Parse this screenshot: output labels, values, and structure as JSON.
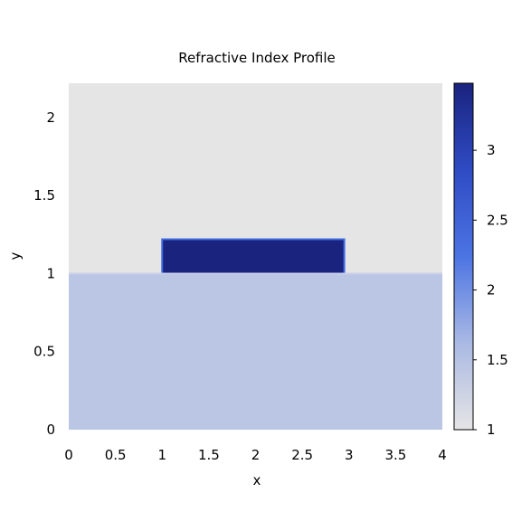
{
  "chart_data": {
    "type": "heatmap",
    "title": "Refractive Index Profile",
    "xlabel": "x",
    "ylabel": "y",
    "xlim": [
      0,
      4
    ],
    "ylim": [
      0,
      2.22
    ],
    "x_ticks": [
      0,
      0.5,
      1,
      1.5,
      2,
      2.5,
      3,
      3.5,
      4
    ],
    "y_ticks": [
      0,
      0.5,
      1,
      1.5,
      2
    ],
    "x_tick_labels": [
      "0",
      "0.5",
      "1",
      "1.5",
      "2",
      "2.5",
      "3",
      "3.5",
      "4"
    ],
    "y_tick_labels": [
      "0",
      "0.5",
      "1",
      "1.5",
      "2"
    ],
    "grid": false,
    "regions": [
      {
        "x": [
          0,
          4
        ],
        "y": [
          1,
          2.22
        ],
        "value": 1.0
      },
      {
        "x": [
          0,
          4
        ],
        "y": [
          0,
          1
        ],
        "value": 1.44
      },
      {
        "x": [
          1,
          2.95
        ],
        "y": [
          1,
          1.22
        ],
        "value": 3.48
      }
    ],
    "colorbar": {
      "range": [
        1,
        3.48
      ],
      "ticks": [
        1,
        1.5,
        2,
        2.5,
        3
      ],
      "tick_labels": [
        "1",
        "1.5",
        "2",
        "2.5",
        "3"
      ],
      "colormap": [
        "#e5e5e5",
        "#aab9e4",
        "#4c74e3",
        "#2f4bc4",
        "#1a237e"
      ]
    }
  }
}
